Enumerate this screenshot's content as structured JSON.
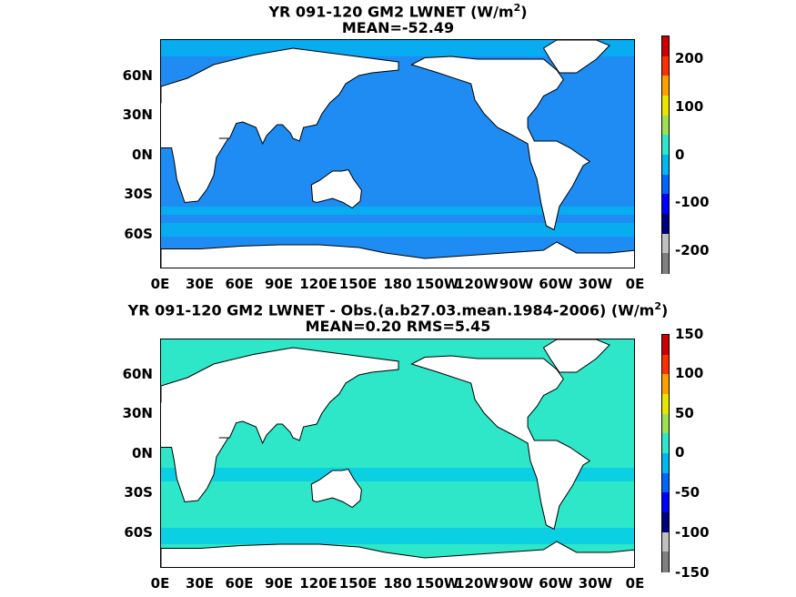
{
  "top": {
    "title_line1": "YR 091-120 GM2  LWNET (W/m",
    "title_sup": "2",
    "title_close": ")",
    "title_line2": "MEAN=-52.49",
    "ocean_color": "#1e8cf2",
    "ocean_alt_color": "#00b7f0",
    "colorbar_labels": [
      "200",
      "100",
      "0",
      "-100",
      "-200"
    ]
  },
  "bottom": {
    "title_line1": "YR 091-120 GM2 LWNET - Obs.(a.b27.03.mean.1984-2006) (W/m",
    "title_sup": "2",
    "title_close": ")",
    "title_line2": "MEAN=0.20 RMS=5.45",
    "ocean_color": "#2ee6c8",
    "ocean_alt_color": "#00c8ee",
    "colorbar_labels": [
      "150",
      "100",
      "50",
      "0",
      "-50",
      "-100",
      "-150"
    ]
  },
  "lat_labels": [
    "60N",
    "30N",
    "0N",
    "30S",
    "60S"
  ],
  "lon_labels": [
    "0E",
    "30E",
    "60E",
    "90E",
    "120E",
    "150E",
    "180",
    "150W",
    "120W",
    "90W",
    "60W",
    "30W",
    "0E"
  ],
  "land_color": "#ffffff",
  "colormap": [
    "#7f7f7f",
    "#c0c0c0",
    "#00007f",
    "#0000ff",
    "#0066ff",
    "#00b7f0",
    "#2ee6c8",
    "#9fe050",
    "#e6e600",
    "#ffa000",
    "#ff3000",
    "#cc0000"
  ]
}
